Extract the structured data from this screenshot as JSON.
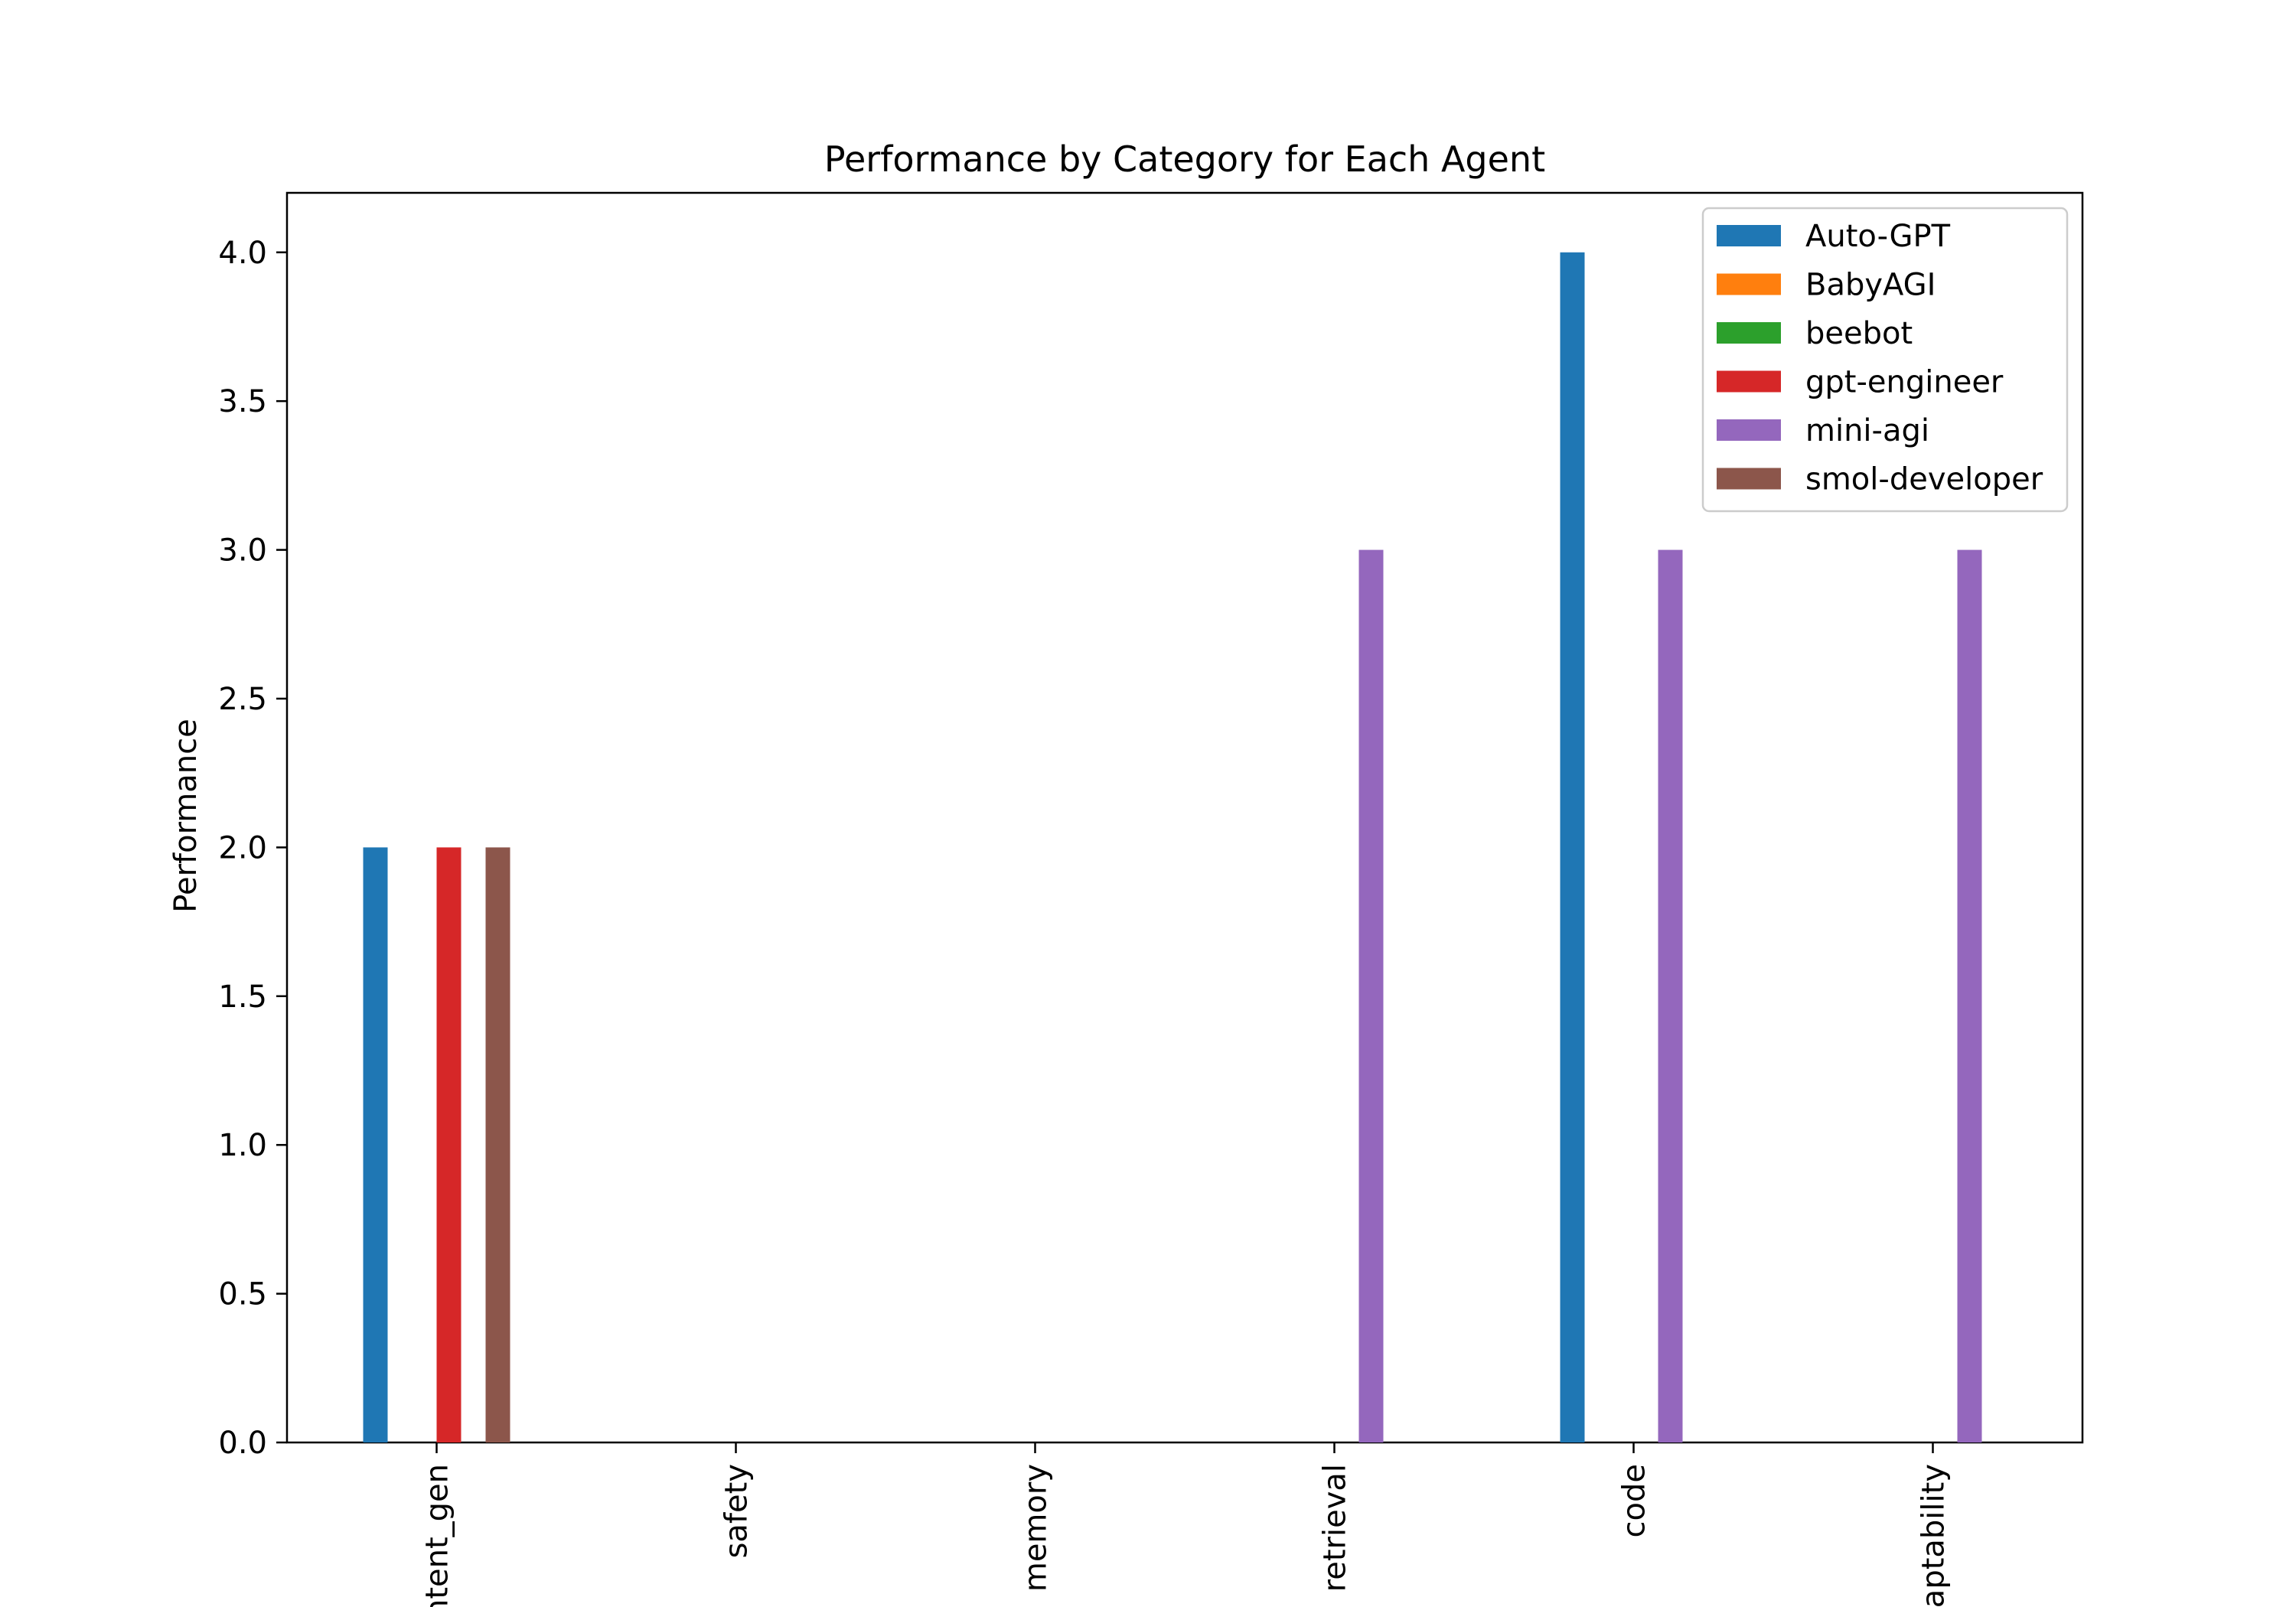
{
  "chart_data": {
    "type": "bar",
    "title": "Performance by Category for Each Agent",
    "xlabel": "",
    "ylabel": "Performance",
    "categories": [
      "content_gen",
      "safety",
      "memory",
      "retrieval",
      "code",
      "adaptability"
    ],
    "series": [
      {
        "name": "Auto-GPT",
        "color": "#1f77b4",
        "values": [
          2,
          0,
          0,
          0,
          4,
          0
        ]
      },
      {
        "name": "BabyAGI",
        "color": "#ff7f0e",
        "values": [
          0,
          0,
          0,
          0,
          0,
          0
        ]
      },
      {
        "name": "beebot",
        "color": "#2ca02c",
        "values": [
          0,
          0,
          0,
          0,
          0,
          0
        ]
      },
      {
        "name": "gpt-engineer",
        "color": "#d62728",
        "values": [
          2,
          0,
          0,
          0,
          0,
          0
        ]
      },
      {
        "name": "mini-agi",
        "color": "#9467bd",
        "values": [
          0,
          0,
          0,
          3,
          3,
          3
        ]
      },
      {
        "name": "smol-developer",
        "color": "#8c564b",
        "values": [
          2,
          0,
          0,
          0,
          0,
          0
        ]
      }
    ],
    "ylim": [
      0,
      4.2
    ],
    "yticks": [
      "0.0",
      "0.5",
      "1.0",
      "1.5",
      "2.0",
      "2.5",
      "3.0",
      "3.5",
      "4.0"
    ],
    "grid": false,
    "legend_position": "top-right"
  }
}
